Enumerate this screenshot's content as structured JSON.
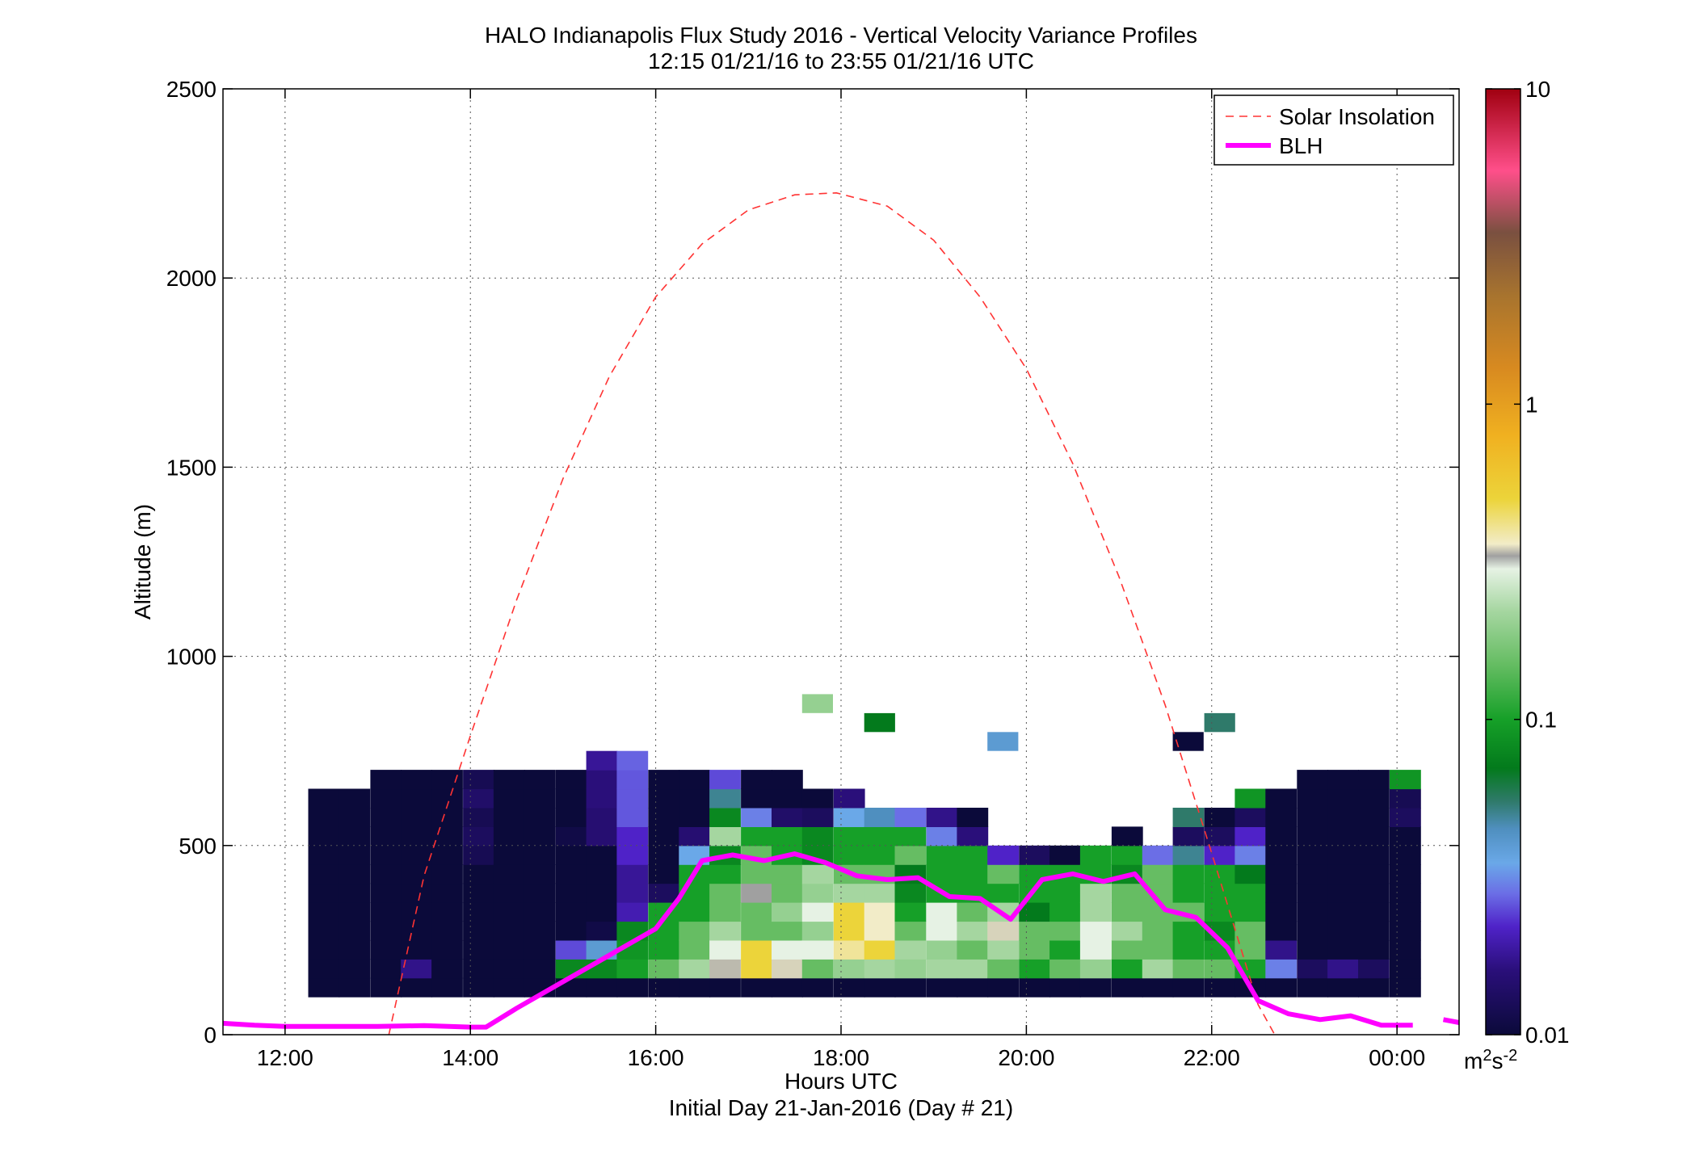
{
  "title_line1": "HALO Indianapolis Flux Study 2016 - Vertical Velocity Variance Profiles",
  "title_line2": "12:15 01/21/16 to 23:55 01/21/16  UTC",
  "chart_data": {
    "type": "heatmap",
    "title": "HALO Indianapolis Flux Study 2016 - Vertical Velocity Variance Profiles",
    "subtitle": "12:15 01/21/16 to 23:55 01/21/16  UTC",
    "xlabel": "Hours UTC",
    "xlabel2": "Initial Day 21-Jan-2016 (Day # 21)",
    "ylabel": "Altitude (m)",
    "xlim_hours": [
      11.33,
      24.67
    ],
    "ylim": [
      0,
      2500
    ],
    "x_ticks": [
      {
        "value": 12,
        "label": "12:00"
      },
      {
        "value": 14,
        "label": "14:00"
      },
      {
        "value": 16,
        "label": "16:00"
      },
      {
        "value": 18,
        "label": "18:00"
      },
      {
        "value": 20,
        "label": "20:00"
      },
      {
        "value": 22,
        "label": "22:00"
      },
      {
        "value": 24,
        "label": "00:00"
      }
    ],
    "y_ticks": [
      {
        "value": 0,
        "label": "0"
      },
      {
        "value": 500,
        "label": "500"
      },
      {
        "value": 1000,
        "label": "1000"
      },
      {
        "value": 1500,
        "label": "1500"
      },
      {
        "value": 2000,
        "label": "2000"
      },
      {
        "value": 2500,
        "label": "2500"
      }
    ],
    "grid": true,
    "legend_position": "top-right",
    "colorbar": {
      "scale": "log",
      "range": [
        0.01,
        10
      ],
      "ticks": [
        "10",
        "1",
        "0.1",
        "0.01"
      ],
      "unit_base": "m",
      "unit_sup1": "2",
      "unit_mid": "s",
      "unit_sup2": "-2",
      "stops": [
        {
          "v": 0.01,
          "color": "#0b0a3a"
        },
        {
          "v": 0.016,
          "color": "#2a0f7a"
        },
        {
          "v": 0.022,
          "color": "#4f22c8"
        },
        {
          "v": 0.028,
          "color": "#6b6ee6"
        },
        {
          "v": 0.035,
          "color": "#6aa8e8"
        },
        {
          "v": 0.045,
          "color": "#4f8fbf"
        },
        {
          "v": 0.055,
          "color": "#2f7a6a"
        },
        {
          "v": 0.07,
          "color": "#037a1c"
        },
        {
          "v": 0.1,
          "color": "#16a028"
        },
        {
          "v": 0.15,
          "color": "#66bd63"
        },
        {
          "v": 0.22,
          "color": "#a5d6a0"
        },
        {
          "v": 0.3,
          "color": "#e6f2e4"
        },
        {
          "v": 0.33,
          "color": "#a0a0a0"
        },
        {
          "v": 0.36,
          "color": "#f2ecc8"
        },
        {
          "v": 0.5,
          "color": "#ecd43a"
        },
        {
          "v": 0.8,
          "color": "#f0b020"
        },
        {
          "v": 1.3,
          "color": "#d88a20"
        },
        {
          "v": 2.2,
          "color": "#a8742e"
        },
        {
          "v": 3.5,
          "color": "#7a5040"
        },
        {
          "v": 5.5,
          "color": "#ff4f8a"
        },
        {
          "v": 10,
          "color": "#a00010"
        }
      ]
    },
    "heatmap": {
      "x_start_hours": 12.25,
      "column_width_hours": 0.3333,
      "y_start": 100,
      "row_height": 50,
      "columns": [
        {
          "t": 12.25,
          "cells": [
            0.01,
            0.01,
            0.01,
            0.01,
            0.01,
            0.01,
            0.01,
            0.01,
            0.01,
            0.01,
            0.01
          ]
        },
        {
          "t": 12.58,
          "cells": [
            0.01,
            0.01,
            0.01,
            0.01,
            0.01,
            0.01,
            0.01,
            0.01,
            0.01,
            0.01,
            0.01
          ]
        },
        {
          "t": 12.92,
          "cells": [
            0.01,
            0.01,
            0.01,
            0.01,
            0.01,
            0.01,
            0.01,
            0.01,
            0.01,
            0.01,
            0.01,
            0.01
          ]
        },
        {
          "t": 13.25,
          "cells": [
            0.01,
            0.017,
            0.01,
            0.01,
            0.01,
            0.01,
            0.01,
            0.01,
            0.01,
            0.01,
            0.01,
            0.01
          ]
        },
        {
          "t": 13.58,
          "cells": [
            0.01,
            0.01,
            0.01,
            0.01,
            0.01,
            0.01,
            0.01,
            0.01,
            0.01,
            0.01,
            0.01,
            0.01
          ]
        },
        {
          "t": 13.92,
          "cells": [
            0.01,
            0.01,
            0.01,
            0.01,
            0.01,
            0.01,
            0.01,
            0.012,
            0.013,
            0.012,
            0.014,
            0.012
          ]
        },
        {
          "t": 14.25,
          "cells": [
            0.01,
            0.01,
            0.01,
            0.01,
            0.01,
            0.01,
            0.01,
            0.01,
            0.01,
            0.01,
            0.01,
            0.01
          ]
        },
        {
          "t": 14.58,
          "cells": [
            0.01,
            0.01,
            0.01,
            0.01,
            0.01,
            0.01,
            0.01,
            0.01,
            0.01,
            0.01,
            0.01,
            0.01
          ]
        },
        {
          "t": 14.92,
          "cells": [
            0.01,
            0.08,
            0.025,
            0.01,
            0.01,
            0.01,
            0.01,
            0.01,
            0.011,
            0.01,
            0.01,
            0.01
          ]
        },
        {
          "t": 15.25,
          "cells": [
            0.01,
            0.08,
            0.04,
            0.011,
            0.01,
            0.01,
            0.01,
            0.01,
            0.015,
            0.015,
            0.016,
            0.016,
            0.018
          ]
        },
        {
          "t": 15.58,
          "cells": [
            0.01,
            0.1,
            0.09,
            0.08,
            0.02,
            0.018,
            0.018,
            0.022,
            0.022,
            0.026,
            0.026,
            0.026,
            0.027
          ]
        },
        {
          "t": 15.92,
          "cells": [
            0.01,
            0.15,
            0.1,
            0.1,
            0.1,
            0.013,
            0.01,
            0.01,
            0.01,
            0.01,
            0.01,
            0.01
          ]
        },
        {
          "t": 16.25,
          "cells": [
            0.01,
            0.22,
            0.15,
            0.15,
            0.1,
            0.1,
            0.1,
            0.035,
            0.015,
            0.01,
            0.01,
            0.01
          ]
        },
        {
          "t": 16.58,
          "cells": [
            0.01,
            0.34,
            0.3,
            0.22,
            0.15,
            0.15,
            0.1,
            0.08,
            0.22,
            0.08,
            0.05,
            0.025
          ]
        },
        {
          "t": 16.92,
          "cells": [
            0.01,
            0.5,
            0.5,
            0.15,
            0.15,
            0.33,
            0.15,
            0.15,
            0.1,
            0.03,
            0.01,
            0.01
          ]
        },
        {
          "t": 17.25,
          "cells": [
            0.01,
            0.35,
            0.3,
            0.15,
            0.2,
            0.15,
            0.15,
            0.1,
            0.1,
            0.014,
            0.01,
            0.01
          ]
        },
        {
          "t": 17.58,
          "cells": [
            0.01,
            0.15,
            0.3,
            0.2,
            0.3,
            0.2,
            0.22,
            0.08,
            0.08,
            0.013,
            0.01
          ]
        },
        {
          "t": 17.92,
          "cells": [
            0.01,
            0.2,
            0.4,
            0.5,
            0.5,
            0.22,
            0.15,
            0.1,
            0.1,
            0.035,
            0.016
          ]
        },
        {
          "t": 18.25,
          "cells": [
            0.01,
            0.22,
            0.5,
            0.36,
            0.36,
            0.22,
            0.15,
            0.1,
            0.1,
            0.045
          ]
        },
        {
          "t": 18.58,
          "cells": [
            0.01,
            0.2,
            0.22,
            0.15,
            0.1,
            0.08,
            0.07,
            0.15,
            0.1,
            0.028
          ]
        },
        {
          "t": 18.92,
          "cells": [
            0.01,
            0.22,
            0.2,
            0.3,
            0.3,
            0.1,
            0.1,
            0.1,
            0.03,
            0.017
          ]
        },
        {
          "t": 19.25,
          "cells": [
            0.01,
            0.22,
            0.15,
            0.22,
            0.15,
            0.1,
            0.1,
            0.1,
            0.016,
            0.01
          ]
        },
        {
          "t": 19.58,
          "cells": [
            0.01,
            0.15,
            0.22,
            0.35,
            0.22,
            0.1,
            0.15,
            0.022
          ]
        },
        {
          "t": 19.92,
          "cells": [
            0.01,
            0.1,
            0.15,
            0.15,
            0.07,
            0.1,
            0.1,
            0.013
          ]
        },
        {
          "t": 20.25,
          "cells": [
            0.01,
            0.15,
            0.1,
            0.15,
            0.1,
            0.1,
            0.1,
            0.01
          ]
        },
        {
          "t": 20.58,
          "cells": [
            0.01,
            0.2,
            0.3,
            0.3,
            0.22,
            0.22,
            0.1,
            0.1
          ]
        },
        {
          "t": 20.92,
          "cells": [
            0.01,
            0.1,
            0.15,
            0.22,
            0.15,
            0.15,
            0.08,
            0.1,
            0.01
          ]
        },
        {
          "t": 21.25,
          "cells": [
            0.01,
            0.22,
            0.15,
            0.15,
            0.15,
            0.15,
            0.15,
            0.028
          ]
        },
        {
          "t": 21.58,
          "cells": [
            0.01,
            0.15,
            0.1,
            0.1,
            0.15,
            0.1,
            0.1,
            0.05,
            0.013,
            0.055
          ]
        },
        {
          "t": 21.92,
          "cells": [
            0.01,
            0.15,
            0.1,
            0.08,
            0.1,
            0.1,
            0.1,
            0.022,
            0.013,
            0.01
          ]
        },
        {
          "t": 22.25,
          "cells": [
            0.01,
            0.1,
            0.15,
            0.15,
            0.1,
            0.1,
            0.07,
            0.03,
            0.022,
            0.013,
            0.09
          ]
        },
        {
          "t": 22.58,
          "cells": [
            0.01,
            0.03,
            0.017,
            0.01,
            0.01,
            0.01,
            0.01,
            0.01,
            0.01,
            0.01,
            0.01
          ]
        },
        {
          "t": 22.92,
          "cells": [
            0.01,
            0.013,
            0.01,
            0.01,
            0.01,
            0.01,
            0.01,
            0.01,
            0.01,
            0.01,
            0.01,
            0.01
          ]
        },
        {
          "t": 23.25,
          "cells": [
            0.01,
            0.017,
            0.01,
            0.01,
            0.01,
            0.01,
            0.01,
            0.01,
            0.01,
            0.01,
            0.01,
            0.01
          ]
        },
        {
          "t": 23.58,
          "cells": [
            0.01,
            0.013,
            0.01,
            0.01,
            0.01,
            0.01,
            0.01,
            0.01,
            0.01,
            0.01,
            0.01,
            0.01
          ]
        },
        {
          "t": 23.92,
          "cells": [
            0.01,
            0.01,
            0.01,
            0.01,
            0.01,
            0.01,
            0.01,
            0.01,
            0.01,
            0.013,
            0.012,
            0.09
          ]
        }
      ],
      "isolated_cells": [
        {
          "t": 17.58,
          "alt": 875,
          "v": 0.2
        },
        {
          "t": 18.25,
          "alt": 825,
          "v": 0.07
        },
        {
          "t": 19.58,
          "alt": 775,
          "v": 0.04
        },
        {
          "t": 21.58,
          "alt": 775,
          "v": 0.01
        },
        {
          "t": 21.92,
          "alt": 825,
          "v": 0.055
        }
      ]
    },
    "series": [
      {
        "name": "Solar Insolation",
        "style": "dashed",
        "color": "#ff3333",
        "points": [
          [
            13.12,
            0
          ],
          [
            13.5,
            420
          ],
          [
            14.0,
            790
          ],
          [
            14.5,
            1150
          ],
          [
            15.0,
            1470
          ],
          [
            15.5,
            1740
          ],
          [
            16.0,
            1950
          ],
          [
            16.5,
            2090
          ],
          [
            17.0,
            2180
          ],
          [
            17.5,
            2220
          ],
          [
            17.95,
            2225
          ],
          [
            18.5,
            2190
          ],
          [
            19.0,
            2100
          ],
          [
            19.5,
            1950
          ],
          [
            20.0,
            1760
          ],
          [
            20.5,
            1510
          ],
          [
            21.0,
            1210
          ],
          [
            21.5,
            870
          ],
          [
            22.0,
            480
          ],
          [
            22.5,
            80
          ],
          [
            22.68,
            0
          ]
        ]
      },
      {
        "name": "BLH",
        "style": "solid",
        "color": "#ff00ff",
        "points": [
          [
            11.33,
            30
          ],
          [
            11.67,
            25
          ],
          [
            12.0,
            22
          ],
          [
            12.5,
            22
          ],
          [
            13.0,
            22
          ],
          [
            13.5,
            24
          ],
          [
            14.0,
            20
          ],
          [
            14.17,
            20
          ],
          [
            14.5,
            70
          ],
          [
            15.0,
            140
          ],
          [
            15.5,
            210
          ],
          [
            16.0,
            280
          ],
          [
            16.25,
            360
          ],
          [
            16.5,
            460
          ],
          [
            16.83,
            475
          ],
          [
            17.17,
            460
          ],
          [
            17.5,
            478
          ],
          [
            17.83,
            455
          ],
          [
            18.17,
            420
          ],
          [
            18.5,
            410
          ],
          [
            18.83,
            415
          ],
          [
            19.17,
            365
          ],
          [
            19.5,
            360
          ],
          [
            19.83,
            305
          ],
          [
            20.17,
            410
          ],
          [
            20.5,
            425
          ],
          [
            20.83,
            405
          ],
          [
            21.17,
            425
          ],
          [
            21.5,
            330
          ],
          [
            21.83,
            310
          ],
          [
            22.17,
            230
          ],
          [
            22.5,
            90
          ],
          [
            22.83,
            55
          ],
          [
            23.17,
            40
          ],
          [
            23.5,
            50
          ],
          [
            23.83,
            25
          ],
          [
            24.17,
            25
          ]
        ],
        "tail": [
          [
            24.5,
            40
          ],
          [
            24.67,
            32
          ]
        ]
      }
    ]
  }
}
